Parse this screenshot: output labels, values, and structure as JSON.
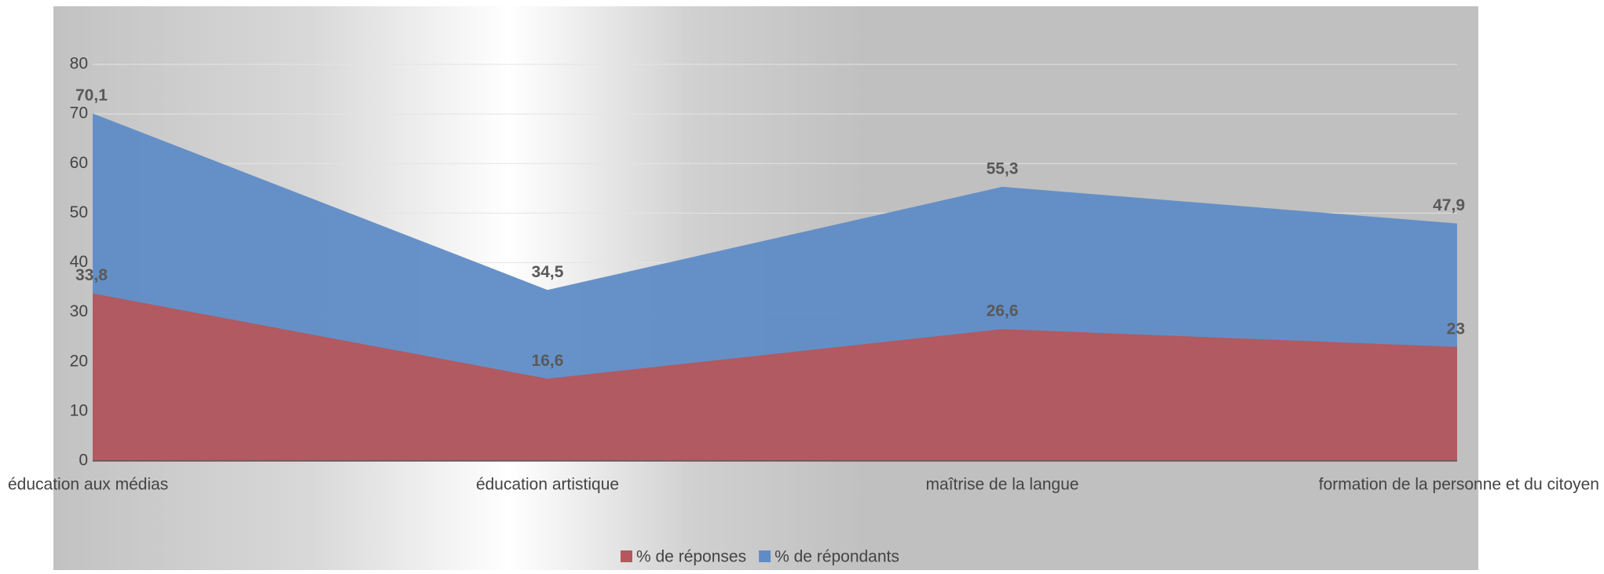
{
  "chart_data": {
    "type": "area",
    "categories": [
      "éducation aux médias",
      "éducation artistique",
      "maîtrise de la langue",
      "formation de la personne et du citoyen"
    ],
    "series": [
      {
        "name": "% de réponses",
        "color": "#b5575c",
        "values": [
          33.8,
          16.6,
          26.6,
          23
        ],
        "value_labels": [
          "33,8",
          "16,6",
          "26,6",
          "23"
        ]
      },
      {
        "name": "% de répondants",
        "color": "#5f8cc6",
        "values": [
          70.1,
          34.5,
          55.3,
          47.9
        ],
        "value_labels": [
          "70,1",
          "34,5",
          "55,3",
          "47,9"
        ]
      }
    ],
    "ylim": [
      0,
      80
    ],
    "yticks": [
      0,
      10,
      20,
      30,
      40,
      50,
      60,
      70,
      80
    ],
    "grid": true,
    "legend": "bottom"
  }
}
